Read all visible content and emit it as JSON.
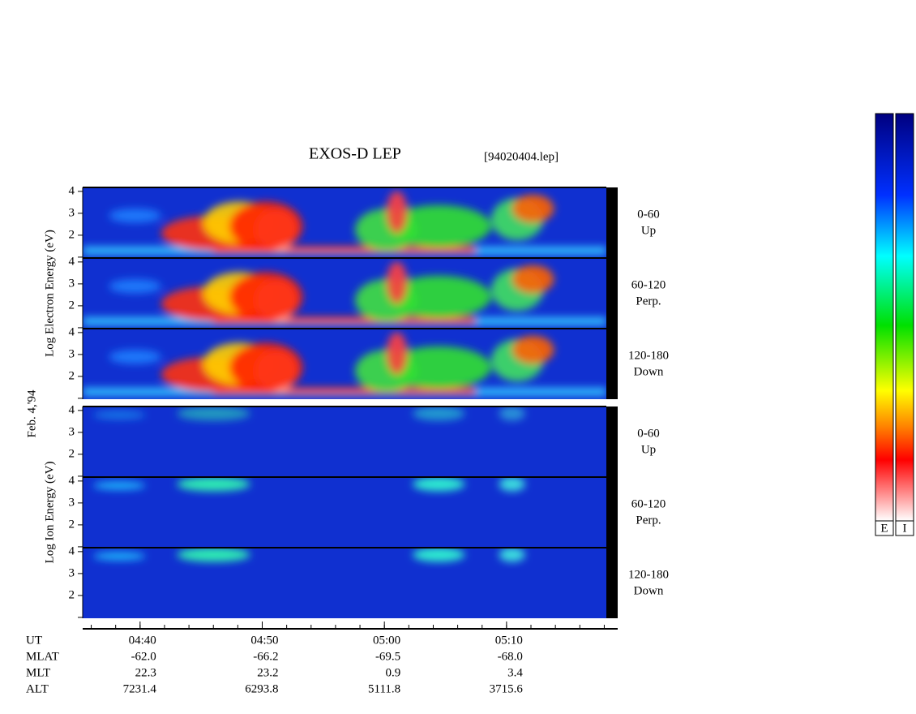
{
  "chart_data": {
    "type": "spectrogram",
    "title": "EXOS-D LEP",
    "file_label": "[94020404.lep]",
    "date_label": "Feb. 4,'94",
    "groups": [
      {
        "ylabel": "Log  Electron  Energy (eV)",
        "panels": [
          {
            "range": "0-60",
            "direction": "Up"
          },
          {
            "range": "60-120",
            "direction": "Perp."
          },
          {
            "range": "120-180",
            "direction": "Down"
          }
        ]
      },
      {
        "ylabel": "Log  Ion  Energy (eV)",
        "panels": [
          {
            "range": "0-60",
            "direction": "Up"
          },
          {
            "range": "60-120",
            "direction": "Perp."
          },
          {
            "range": "120-180",
            "direction": "Down"
          }
        ]
      }
    ],
    "ylim": [
      0.96,
      4.18
    ],
    "yticks": [
      {
        "value": 1,
        "label": null
      },
      2,
      3,
      4
    ],
    "xlim": [
      275.3,
      319.1
    ],
    "xticks": [
      {
        "value": 280,
        "label": "04:40"
      },
      {
        "value": 290,
        "label": "04:50"
      },
      {
        "value": 300,
        "label": "05:00"
      },
      {
        "value": 310,
        "label": "05:10"
      }
    ],
    "row_labels": [
      "UT",
      "MLAT",
      "MLT",
      "ALT"
    ],
    "rows": [
      [
        "-62.0",
        "-66.2",
        "-69.5",
        "-68.0"
      ],
      [
        "22.3",
        "23.2",
        "0.9",
        "3.4"
      ],
      [
        "7231.4",
        "6293.8",
        "5111.8",
        "3715.6"
      ]
    ],
    "colorbar_labels": [
      "E",
      "I"
    ]
  }
}
